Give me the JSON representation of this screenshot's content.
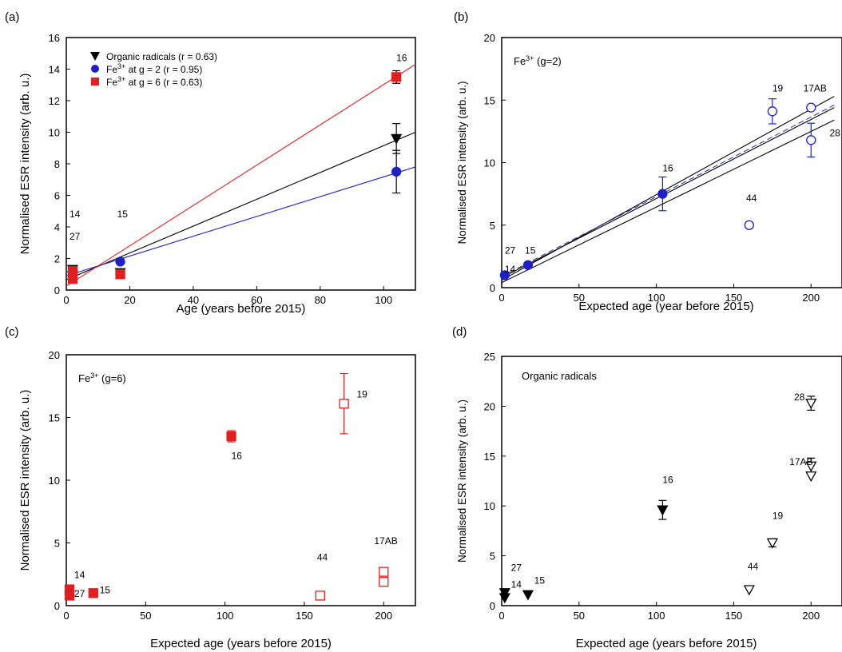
{
  "chart_data": [
    {
      "panel_label": "(a)",
      "type": "scatter",
      "xlabel": "Age (years before 2015)",
      "ylabel": "Normalised ESR intensity (arb. u.)",
      "xlim": [
        0,
        110
      ],
      "ylim": [
        0,
        16
      ],
      "xticks": [
        0,
        20,
        40,
        60,
        80,
        100
      ],
      "yticks": [
        0,
        2,
        4,
        6,
        8,
        10,
        12,
        14,
        16
      ],
      "legend_position": "top-left",
      "series": [
        {
          "name": "Organic radicals (r = 0.63)",
          "marker": "triangle-down-filled",
          "color": "#000000",
          "x": [
            2,
            2,
            17,
            104
          ],
          "y": [
            1.3,
            0.9,
            1.1,
            9.6
          ],
          "err": [
            0,
            0,
            0,
            0.95
          ]
        },
        {
          "name_parts": [
            "Fe",
            "3+",
            " at g = 2 (r = 0.95)"
          ],
          "marker": "circle-filled",
          "color": "#1f1fc4",
          "x": [
            2,
            2,
            17,
            104
          ],
          "y": [
            1.1,
            0.9,
            1.8,
            7.5
          ],
          "err": [
            0,
            0,
            0,
            1.35
          ]
        },
        {
          "name_parts": [
            "Fe",
            "3+",
            " at g = 6 (r = 0.63)"
          ],
          "marker": "square-filled",
          "color": "#e02020",
          "x": [
            2,
            2,
            17,
            104
          ],
          "y": [
            1.2,
            0.7,
            1.0,
            13.5
          ],
          "err": [
            0,
            0,
            0,
            0.4
          ]
        }
      ],
      "fit_lines": [
        {
          "color": "#000000",
          "x": [
            0,
            110
          ],
          "y": [
            0.65,
            10.0
          ]
        },
        {
          "color": "#1f1fc4",
          "x": [
            0,
            110
          ],
          "y": [
            0.9,
            7.8
          ]
        },
        {
          "color": "#e02020",
          "x": [
            0,
            110
          ],
          "y": [
            0.25,
            14.3
          ]
        }
      ],
      "labels": [
        {
          "text": "14",
          "x": 1,
          "y": 4.6
        },
        {
          "text": "27",
          "x": 1,
          "y": 3.2
        },
        {
          "text": "15",
          "x": 16,
          "y": 4.6
        },
        {
          "text": "16",
          "x": 104,
          "y": 14.5
        }
      ]
    },
    {
      "panel_label": "(b)",
      "type": "scatter",
      "title_parts": [
        "Fe",
        "3+",
        "  (g=2)"
      ],
      "xlabel": "Expected age (year before 2015)",
      "ylabel": "Normalised ESR intensity (arb. u.)",
      "xlim": [
        0,
        220
      ],
      "ylim": [
        0,
        20
      ],
      "xticks": [
        0,
        50,
        100,
        150,
        200
      ],
      "yticks": [
        0,
        5,
        10,
        15,
        20
      ],
      "points_filled": {
        "color": "#1f1fc4",
        "x": [
          2,
          17,
          104
        ],
        "y": [
          1.0,
          1.8,
          7.5
        ],
        "err": [
          0,
          0,
          1.35
        ]
      },
      "points_open": {
        "color": "#1f1fc4",
        "x": [
          160,
          175,
          200,
          200
        ],
        "y": [
          5.0,
          14.1,
          14.4,
          11.8
        ],
        "err": [
          0,
          1.0,
          0,
          1.35
        ]
      },
      "fit_lines": [
        {
          "color": "#000000",
          "dash": false,
          "x": [
            0,
            215
          ],
          "y": [
            0.6,
            15.3
          ]
        },
        {
          "color": "#000000",
          "dash": false,
          "x": [
            0,
            215
          ],
          "y": [
            0.8,
            14.4
          ]
        },
        {
          "color": "#000000",
          "dash": false,
          "x": [
            0,
            215
          ],
          "y": [
            0.4,
            13.4
          ]
        },
        {
          "color": "#3a3aa8",
          "dash": true,
          "x": [
            0,
            215
          ],
          "y": [
            0.9,
            14.6
          ]
        }
      ],
      "labels": [
        {
          "text": "27",
          "x": 2,
          "y": 2.7
        },
        {
          "text": "14",
          "x": 2,
          "y": 1.2
        },
        {
          "text": "15",
          "x": 15,
          "y": 2.7
        },
        {
          "text": "16",
          "x": 104,
          "y": 9.3
        },
        {
          "text": "19",
          "x": 175,
          "y": 15.7
        },
        {
          "text": "17AB",
          "x": 195,
          "y": 15.7
        },
        {
          "text": "44",
          "x": 158,
          "y": 6.9
        },
        {
          "text": "28",
          "x": 212,
          "y": 12.1
        }
      ]
    },
    {
      "panel_label": "(c)",
      "type": "scatter",
      "title_parts": [
        "Fe",
        "3+",
        " (g=6)"
      ],
      "xlabel": "Expected age (years before 2015)",
      "ylabel": "Normalised ESR intensity (arb. u.)",
      "xlim": [
        0,
        220
      ],
      "ylim": [
        0,
        20
      ],
      "xticks": [
        0,
        50,
        100,
        150,
        200
      ],
      "yticks": [
        0,
        5,
        10,
        15,
        20
      ],
      "points_filled": {
        "color": "#e02020",
        "x": [
          2,
          2,
          17,
          104
        ],
        "y": [
          1.3,
          0.8,
          1.0,
          13.5
        ],
        "err": [
          0,
          0,
          0,
          0.45
        ]
      },
      "points_open": {
        "color": "#e02020",
        "x": [
          160,
          175,
          200,
          200
        ],
        "y": [
          0.8,
          16.1,
          2.7,
          1.9
        ],
        "err": [
          0,
          2.4,
          0,
          0
        ]
      },
      "labels": [
        {
          "text": "14",
          "x": 5,
          "y": 2.2
        },
        {
          "text": "27",
          "x": 5,
          "y": 0.7
        },
        {
          "text": "15",
          "x": 21,
          "y": 1.0
        },
        {
          "text": "16",
          "x": 104,
          "y": 11.7
        },
        {
          "text": "19",
          "x": 183,
          "y": 16.6
        },
        {
          "text": "44",
          "x": 158,
          "y": 3.6
        },
        {
          "text": "17AB",
          "x": 194,
          "y": 4.9
        }
      ]
    },
    {
      "panel_label": "(d)",
      "type": "scatter",
      "title": "Organic radicals",
      "xlabel": "Expected age (years before 2015)",
      "ylabel": "Normalised ESR intensity (arb. u.)",
      "xlim": [
        0,
        220
      ],
      "ylim": [
        0,
        25
      ],
      "xticks": [
        0,
        50,
        100,
        150,
        200
      ],
      "yticks": [
        0,
        5,
        10,
        15,
        20,
        25
      ],
      "points_filled": {
        "color": "#000000",
        "x": [
          2,
          2,
          17,
          104
        ],
        "y": [
          1.3,
          0.8,
          1.1,
          9.6
        ],
        "err": [
          0,
          0,
          0,
          0.95
        ]
      },
      "points_open": {
        "color": "#000000",
        "x": [
          160,
          175,
          200,
          200,
          200
        ],
        "y": [
          1.6,
          6.3,
          20.3,
          14.0,
          13.0
        ],
        "err": [
          0,
          0.4,
          0.7,
          0.8,
          0
        ]
      },
      "labels": [
        {
          "text": "27",
          "x": 6,
          "y": 3.5
        },
        {
          "text": "14",
          "x": 6,
          "y": 1.8
        },
        {
          "text": "15",
          "x": 21,
          "y": 2.2
        },
        {
          "text": "16",
          "x": 104,
          "y": 12.3
        },
        {
          "text": "28",
          "x": 189,
          "y": 20.6
        },
        {
          "text": "17AB",
          "x": 186,
          "y": 14.1
        },
        {
          "text": "19",
          "x": 175,
          "y": 8.7
        },
        {
          "text": "44",
          "x": 159,
          "y": 3.6
        }
      ]
    }
  ]
}
